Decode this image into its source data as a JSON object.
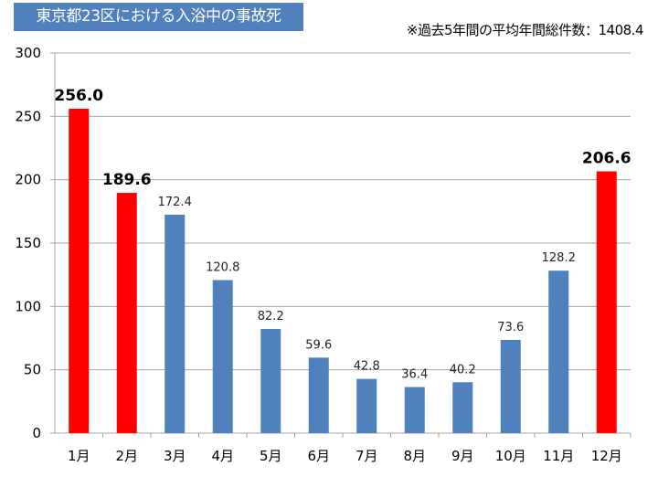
{
  "title": "東京都23区における入浴中の事故死",
  "note": "※過去5年間の平均年間総件数：1408.4",
  "chart_data": {
    "type": "bar",
    "title": "東京都23区における入浴中の事故死",
    "categories": [
      "1月",
      "2月",
      "3月",
      "4月",
      "5月",
      "6月",
      "7月",
      "8月",
      "9月",
      "10月",
      "11月",
      "12月"
    ],
    "values": [
      256.0,
      189.6,
      172.4,
      120.8,
      82.2,
      59.6,
      42.8,
      36.4,
      40.2,
      73.6,
      128.2,
      206.6
    ],
    "value_labels": [
      "256.0",
      "189.6",
      "172.4",
      "120.8",
      "82.2",
      "59.6",
      "42.8",
      "36.4",
      "40.2",
      "73.6",
      "128.2",
      "206.6"
    ],
    "highlighted": [
      true,
      true,
      false,
      false,
      false,
      false,
      false,
      false,
      false,
      false,
      false,
      true
    ],
    "colors": {
      "normal": "#4f81bd",
      "highlight": "#ff0000",
      "grid": "#a6a6a6"
    },
    "ylim": [
      0,
      300
    ],
    "yticks": [
      "0",
      "50",
      "100",
      "150",
      "200",
      "250",
      "300"
    ],
    "grid": true,
    "xlabel": "",
    "ylabel": ""
  }
}
